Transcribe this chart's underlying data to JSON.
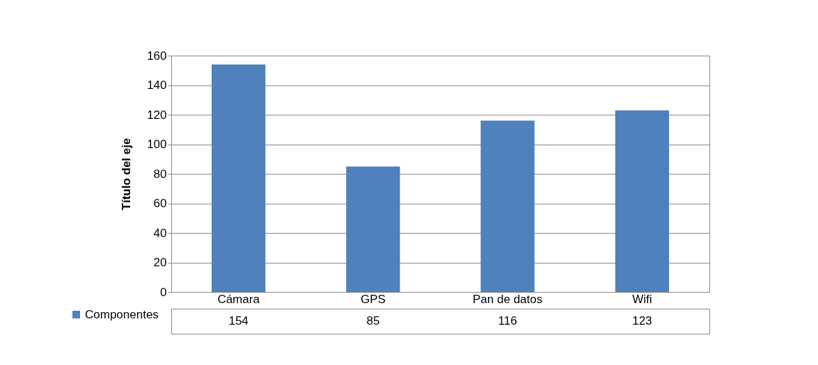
{
  "chart_data": {
    "type": "bar",
    "ylabel": "Título del eje",
    "categories": [
      "Cámara",
      "GPS",
      "Pan de datos",
      "Wifi"
    ],
    "series": [
      {
        "name": "Componentes",
        "color": "#4f81bd",
        "values": [
          154,
          85,
          116,
          123
        ]
      }
    ],
    "ylim": [
      0,
      160
    ],
    "yticks": [
      0,
      20,
      40,
      60,
      80,
      100,
      120,
      140,
      160
    ],
    "grid": "y",
    "legend": "bottom left",
    "data_labels": true
  }
}
